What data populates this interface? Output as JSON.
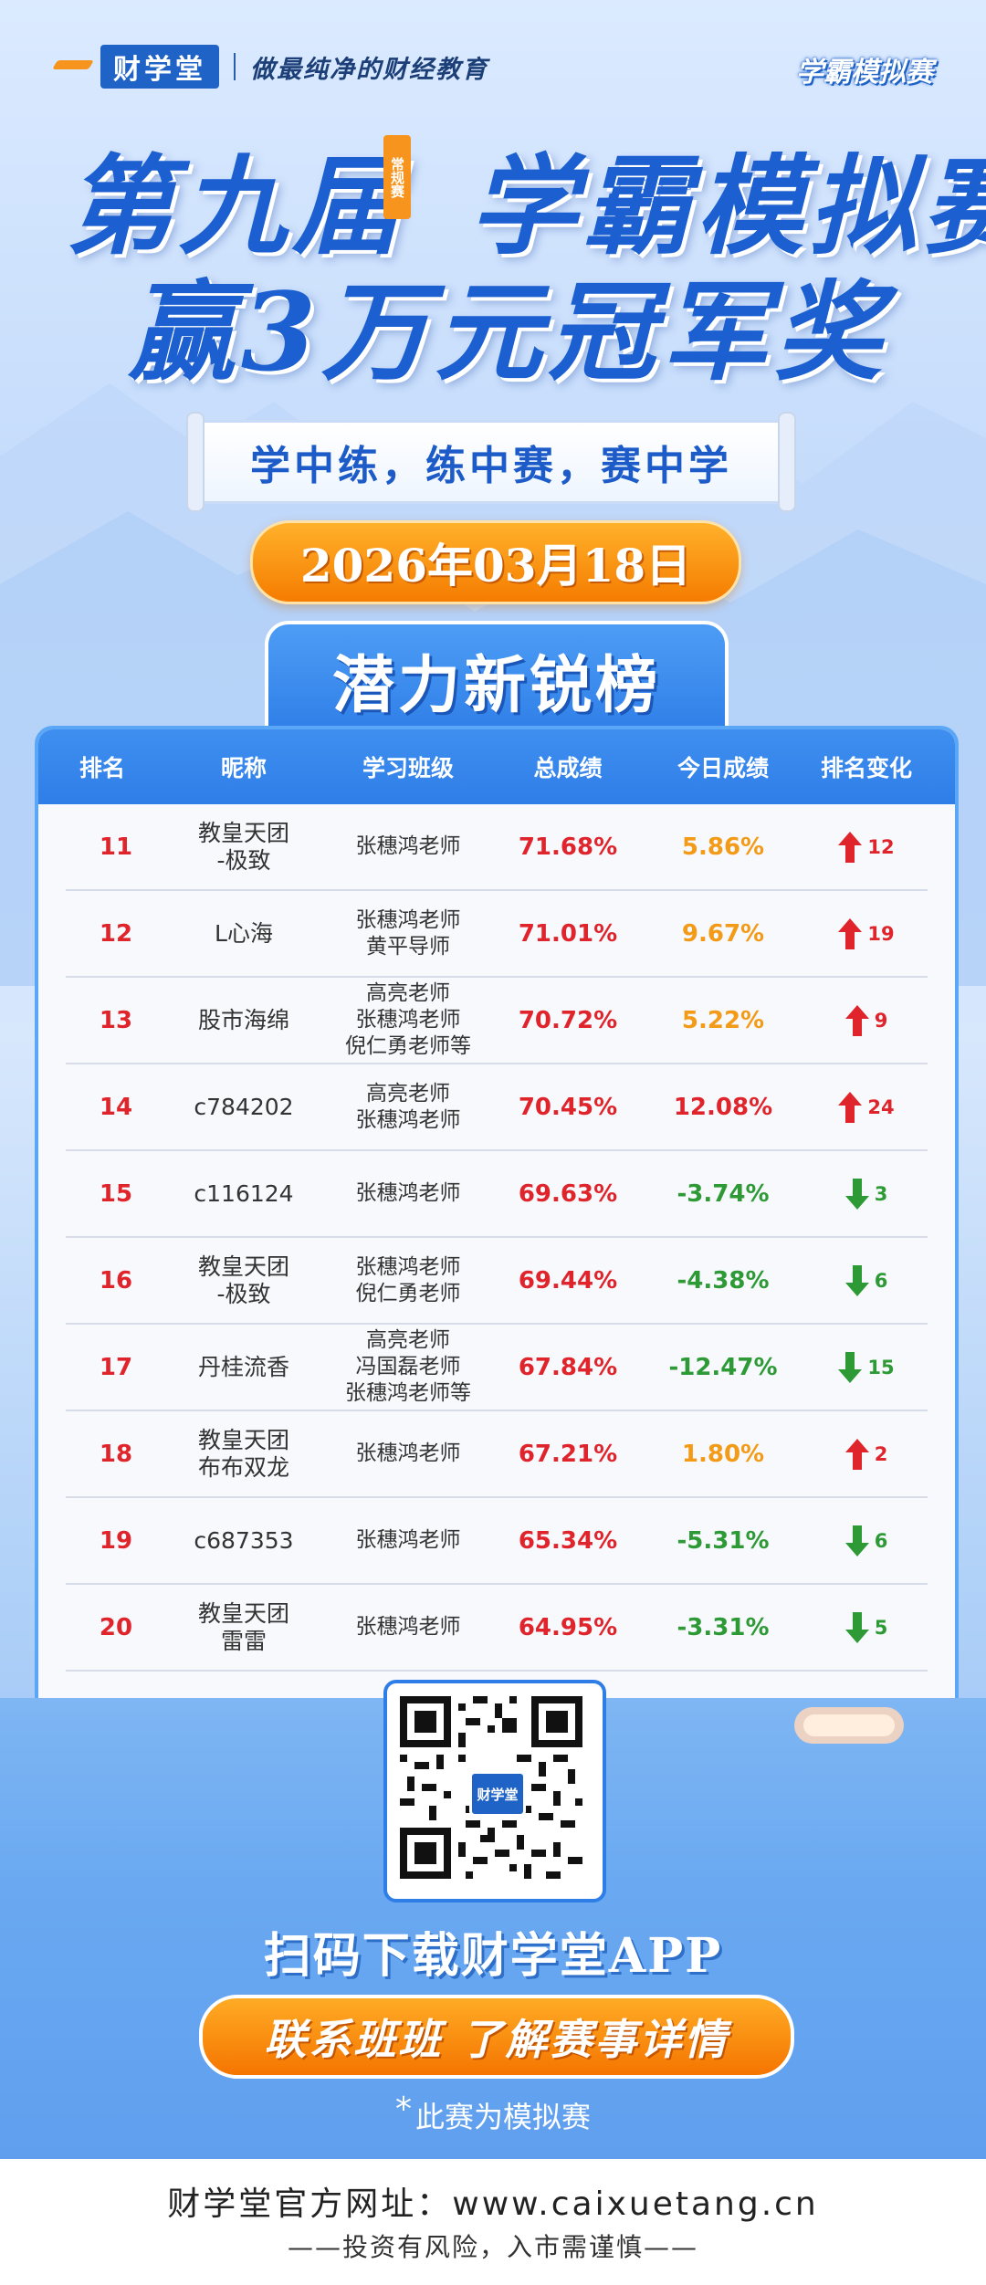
{
  "header": {
    "brand": "财学堂",
    "slogan": "做最纯净的财经教育",
    "right_tag": "学霸模拟赛"
  },
  "title": {
    "line1_a": "第九届",
    "line1_b": "学霸模拟赛",
    "badge": "常规赛",
    "line2": "赢3万元冠军奖"
  },
  "motto": "学中练，练中赛，赛中学",
  "date": "2026年03月18日",
  "list_title": "潜力新锐榜",
  "table": {
    "headers": [
      "排名",
      "昵称",
      "学习班级",
      "总成绩",
      "今日成绩",
      "排名变化"
    ],
    "rows": [
      {
        "rank": "11",
        "name": [
          "教皇天团",
          "-极致"
        ],
        "classes": [
          "张穗鸿老师"
        ],
        "total": "71.68%",
        "today": "5.86%",
        "today_color": "#f39a16",
        "dir": "up",
        "change": "12"
      },
      {
        "rank": "12",
        "name": [
          "L心海"
        ],
        "classes": [
          "张穗鸿老师",
          "黄平导师"
        ],
        "total": "71.01%",
        "today": "9.67%",
        "today_color": "#f39a16",
        "dir": "up",
        "change": "19"
      },
      {
        "rank": "13",
        "name": [
          "股市海绵"
        ],
        "classes": [
          "高亮老师",
          "张穗鸿老师",
          "倪仁勇老师等"
        ],
        "total": "70.72%",
        "today": "5.22%",
        "today_color": "#f39a16",
        "dir": "up",
        "change": "9"
      },
      {
        "rank": "14",
        "name": [
          "c784202"
        ],
        "classes": [
          "高亮老师",
          "张穗鸿老师"
        ],
        "total": "70.45%",
        "today": "12.08%",
        "today_color": "#e0242b",
        "dir": "up",
        "change": "24"
      },
      {
        "rank": "15",
        "name": [
          "c116124"
        ],
        "classes": [
          "张穗鸿老师"
        ],
        "total": "69.63%",
        "today": "-3.74%",
        "today_color": "#2e9a36",
        "dir": "down",
        "change": "3"
      },
      {
        "rank": "16",
        "name": [
          "教皇天团",
          "-极致"
        ],
        "classes": [
          "张穗鸿老师",
          "倪仁勇老师"
        ],
        "total": "69.44%",
        "today": "-4.38%",
        "today_color": "#2e9a36",
        "dir": "down",
        "change": "6"
      },
      {
        "rank": "17",
        "name": [
          "丹桂流香"
        ],
        "classes": [
          "高亮老师",
          "冯国磊老师",
          "张穗鸿老师等"
        ],
        "total": "67.84%",
        "today": "-12.47%",
        "today_color": "#2e9a36",
        "dir": "down",
        "change": "15"
      },
      {
        "rank": "18",
        "name": [
          "教皇天团",
          "布布双龙"
        ],
        "classes": [
          "张穗鸿老师"
        ],
        "total": "67.21%",
        "today": "1.80%",
        "today_color": "#f39a16",
        "dir": "up",
        "change": "2"
      },
      {
        "rank": "19",
        "name": [
          "c687353"
        ],
        "classes": [
          "张穗鸿老师"
        ],
        "total": "65.34%",
        "today": "-5.31%",
        "today_color": "#2e9a36",
        "dir": "down",
        "change": "6"
      },
      {
        "rank": "20",
        "name": [
          "教皇天团",
          "雷雷"
        ],
        "classes": [
          "张穗鸿老师"
        ],
        "total": "64.95%",
        "today": "-3.31%",
        "today_color": "#2e9a36",
        "dir": "down",
        "change": "5"
      }
    ]
  },
  "qr": {
    "logo": "财学堂"
  },
  "scan_text": "扫码下载财学堂APP",
  "contact_button": "联系班班  了解赛事详情",
  "note": "此赛为模拟赛",
  "footer": {
    "url": "财学堂官方网址：www.caixuetang.cn",
    "risk": "——投资有风险，入市需谨慎——"
  },
  "colors": {
    "up": "#e0242b",
    "down": "#2e9a36",
    "accent": "#2f7ee8",
    "orange": "#f57c00"
  }
}
